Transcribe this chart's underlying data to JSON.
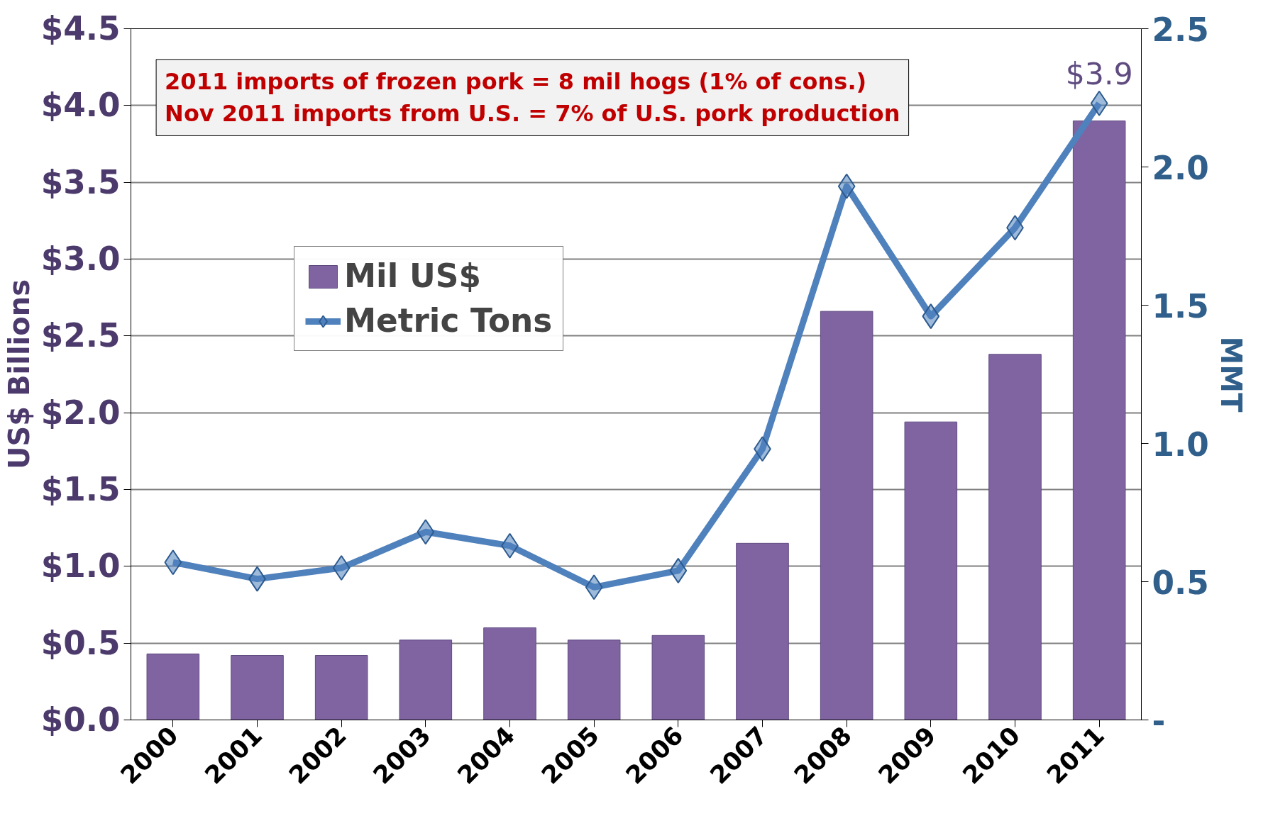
{
  "chart_data": {
    "type": "bar",
    "ylabel": "US$ Billions",
    "y2label": "MMT",
    "categories": [
      "2000",
      "2001",
      "2002",
      "2003",
      "2004",
      "2005",
      "2006",
      "2007",
      "2008",
      "2009",
      "2010",
      "2011"
    ],
    "series": [
      {
        "name": "Mil US$",
        "color": "#8064a2",
        "values": [
          0.43,
          0.42,
          0.42,
          0.52,
          0.6,
          0.52,
          0.55,
          1.15,
          2.66,
          1.94,
          2.38,
          3.9
        ],
        "value_labels": [
          null,
          null,
          null,
          null,
          null,
          null,
          null,
          null,
          null,
          null,
          null,
          "$3.9"
        ]
      },
      {
        "name": "Metric Tons",
        "type": "line",
        "axis": "y2",
        "color": "#4f81bd",
        "marker": "diamond",
        "values": [
          0.57,
          0.51,
          0.55,
          0.68,
          0.63,
          0.48,
          0.54,
          0.98,
          1.93,
          1.46,
          1.78,
          2.23
        ]
      }
    ],
    "ylim": [
      0,
      4.5
    ],
    "yticks": [
      {
        "value": 0,
        "label": "$0.0"
      },
      {
        "value": 0.5,
        "label": "$0.5"
      },
      {
        "value": 1,
        "label": "$1.0"
      },
      {
        "value": 1.5,
        "label": "$1.5"
      },
      {
        "value": 2,
        "label": "$2.0"
      },
      {
        "value": 2.5,
        "label": "$2.5"
      },
      {
        "value": 3,
        "label": "$3.0"
      },
      {
        "value": 3.5,
        "label": "$3.5"
      },
      {
        "value": 4,
        "label": "$4.0"
      },
      {
        "value": 4.5,
        "label": "$4.5"
      }
    ],
    "y2lim": [
      0,
      2.5
    ],
    "y2ticks": [
      {
        "value": 0,
        "label": "-"
      },
      {
        "value": 0.5,
        "label": "0.5"
      },
      {
        "value": 1,
        "label": "1.0"
      },
      {
        "value": 1.5,
        "label": "1.5"
      },
      {
        "value": 2,
        "label": "2.0"
      },
      {
        "value": 2.5,
        "label": "2.5"
      }
    ],
    "annotations": [
      "2011 imports of frozen pork = 8 mil hogs (1% of cons.)\nNov 2011 imports from U.S. = 7% of U.S. pork production"
    ],
    "grid": "y",
    "legend": "top left"
  }
}
